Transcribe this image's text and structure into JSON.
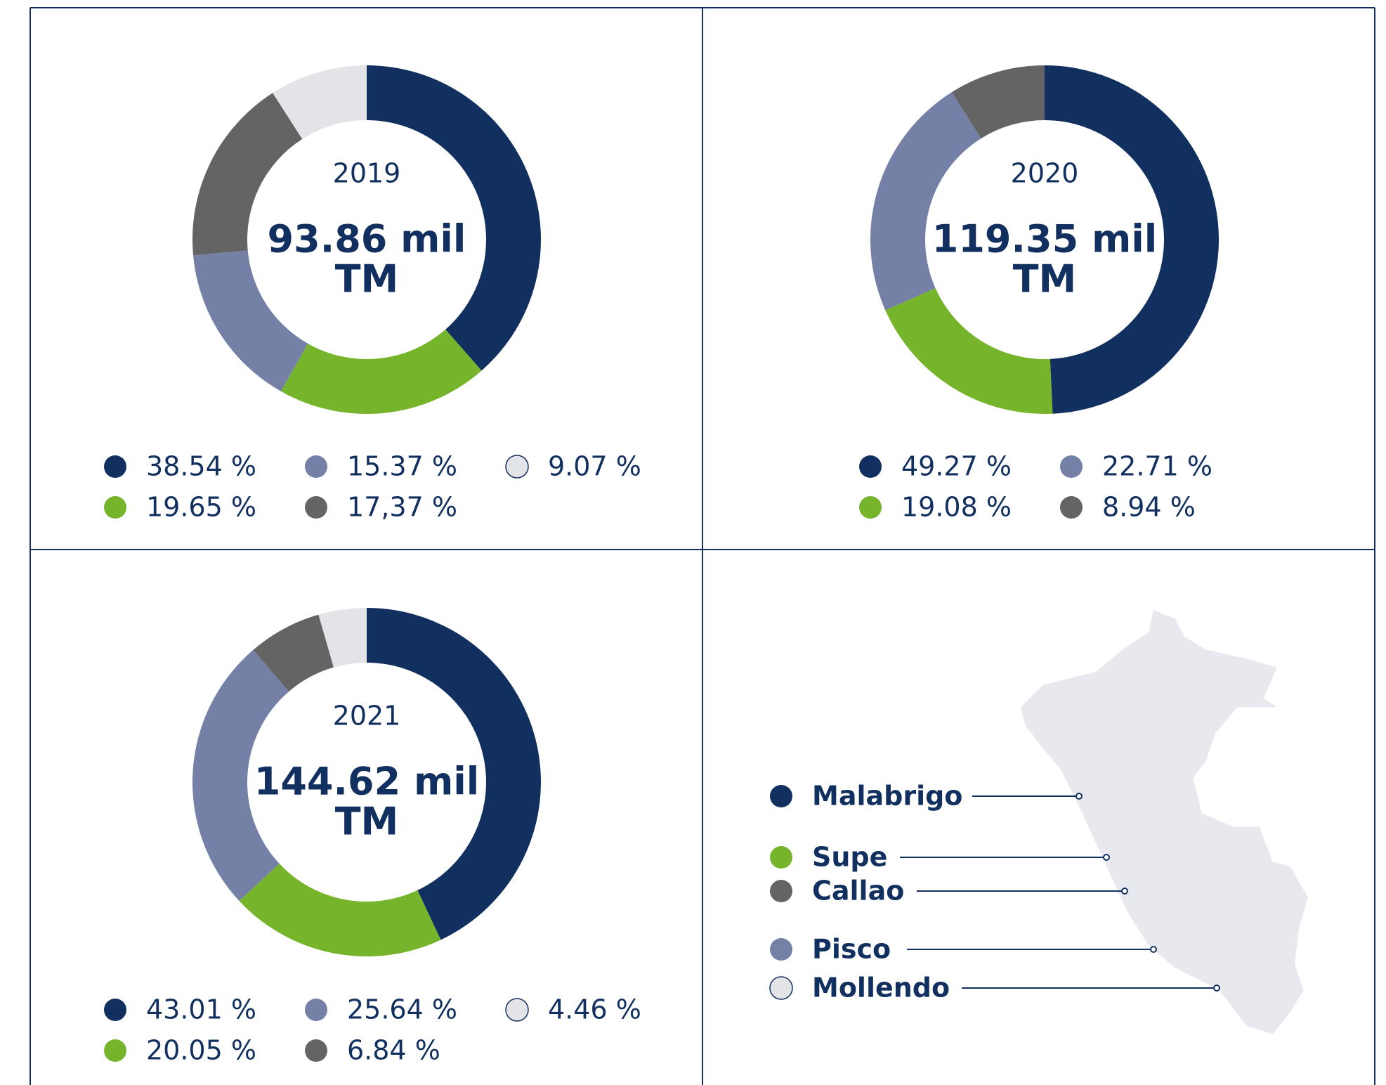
{
  "chart_data": [
    {
      "type": "pie",
      "title": "2019",
      "center_label": [
        "93.86 mil",
        "TM"
      ],
      "values": [
        38.54,
        19.65,
        15.37,
        17.37,
        9.07
      ],
      "value_labels": [
        "38.54 %",
        "19.65 %",
        "15.37 %",
        "17,37 %",
        "9.07 %"
      ],
      "colors": [
        "#12305f",
        "#76b52b",
        "#7480a6",
        "#646464",
        "#e3e4e7"
      ]
    },
    {
      "type": "pie",
      "title": "2020",
      "center_label": [
        "119.35 mil",
        "TM"
      ],
      "values": [
        49.27,
        19.08,
        22.71,
        8.94
      ],
      "value_labels": [
        "49.27 %",
        "19.08 %",
        "22.71 %",
        "8.94 %"
      ],
      "colors": [
        "#12305f",
        "#76b52b",
        "#7480a6",
        "#646464"
      ]
    },
    {
      "type": "pie",
      "title": "2021",
      "center_label": [
        "144.62 mil",
        "TM"
      ],
      "values": [
        43.01,
        20.05,
        25.64,
        6.84,
        4.46
      ],
      "value_labels": [
        "43.01 %",
        "20.05 %",
        "25.64 %",
        "6.84 %",
        "4.46 %"
      ],
      "colors": [
        "#12305f",
        "#76b52b",
        "#7480a6",
        "#646464",
        "#e3e4e7"
      ]
    }
  ],
  "map": {
    "ports": [
      {
        "name": "Malabrigo",
        "color": "#12305f"
      },
      {
        "name": "Supe",
        "color": "#76b52b"
      },
      {
        "name": "Callao",
        "color": "#646464"
      },
      {
        "name": "Pisco",
        "color": "#7480a6"
      },
      {
        "name": "Mollendo",
        "color": "#e3e4e7"
      }
    ]
  }
}
